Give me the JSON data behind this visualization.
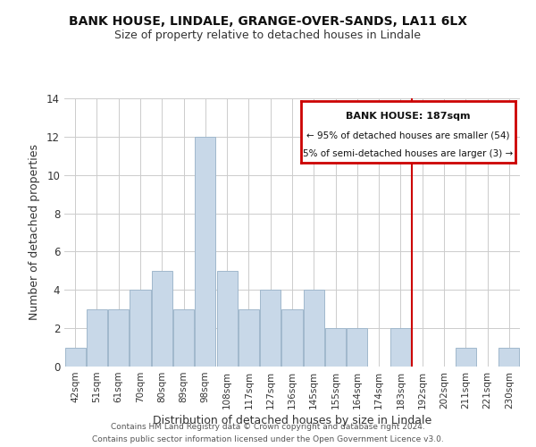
{
  "title": "BANK HOUSE, LINDALE, GRANGE-OVER-SANDS, LA11 6LX",
  "subtitle": "Size of property relative to detached houses in Lindale",
  "xlabel": "Distribution of detached houses by size in Lindale",
  "ylabel": "Number of detached properties",
  "bin_labels": [
    "42sqm",
    "51sqm",
    "61sqm",
    "70sqm",
    "80sqm",
    "89sqm",
    "98sqm",
    "108sqm",
    "117sqm",
    "127sqm",
    "136sqm",
    "145sqm",
    "155sqm",
    "164sqm",
    "174sqm",
    "183sqm",
    "192sqm",
    "202sqm",
    "211sqm",
    "221sqm",
    "230sqm"
  ],
  "bar_heights": [
    1,
    3,
    3,
    4,
    5,
    3,
    12,
    5,
    3,
    4,
    3,
    4,
    2,
    2,
    0,
    2,
    0,
    0,
    1,
    0,
    1
  ],
  "bar_color": "#c8d8e8",
  "bar_edge_color": "#a0b8cc",
  "vline_x": 15.5,
  "vline_color": "#cc0000",
  "ylim": [
    0,
    14
  ],
  "yticks": [
    0,
    2,
    4,
    6,
    8,
    10,
    12,
    14
  ],
  "legend_title": "BANK HOUSE: 187sqm",
  "legend_line1": "← 95% of detached houses are smaller (54)",
  "legend_line2": "5% of semi-detached houses are larger (3) →",
  "legend_box_color": "#cc0000",
  "footer1": "Contains HM Land Registry data © Crown copyright and database right 2024.",
  "footer2": "Contains public sector information licensed under the Open Government Licence v3.0.",
  "background_color": "#ffffff",
  "grid_color": "#cccccc"
}
